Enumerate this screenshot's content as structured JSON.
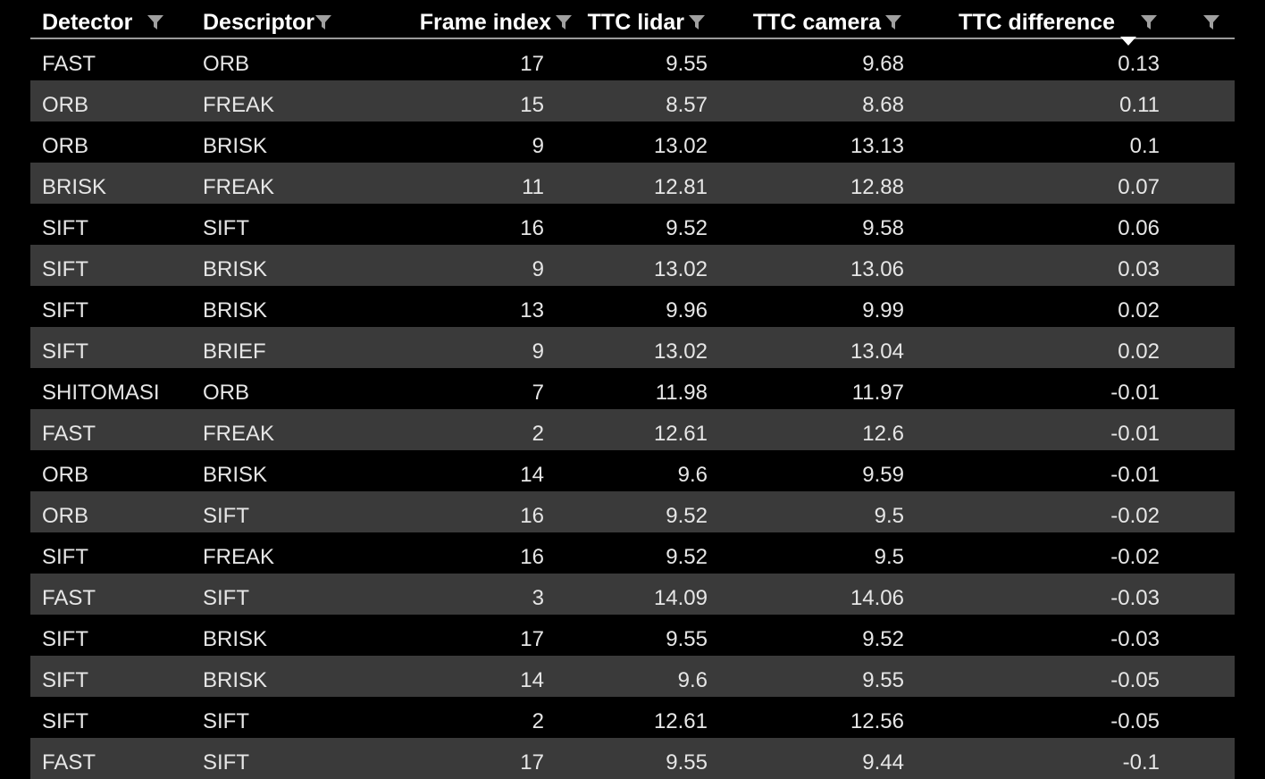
{
  "columns": {
    "detector": "Detector",
    "descriptor": "Descriptor",
    "frame_index": "Frame index",
    "ttc_lidar": "TTC lidar",
    "ttc_camera": "TTC camera",
    "ttc_difference": "TTC difference"
  },
  "sort": {
    "column": "ttc_difference",
    "direction": "descending"
  },
  "colors": {
    "background": "#000000",
    "alt_row": "#3a3a3a",
    "text": "#e6e6e6",
    "header_divider": "#9a9a9a",
    "filter_icon": "#a0a0a0"
  },
  "rows": [
    {
      "detector": "FAST",
      "descriptor": "ORB",
      "frame_index": "17",
      "ttc_lidar": "9.55",
      "ttc_camera": "9.68",
      "ttc_difference": "0.13"
    },
    {
      "detector": "ORB",
      "descriptor": "FREAK",
      "frame_index": "15",
      "ttc_lidar": "8.57",
      "ttc_camera": "8.68",
      "ttc_difference": "0.11"
    },
    {
      "detector": "ORB",
      "descriptor": "BRISK",
      "frame_index": "9",
      "ttc_lidar": "13.02",
      "ttc_camera": "13.13",
      "ttc_difference": "0.1"
    },
    {
      "detector": "BRISK",
      "descriptor": "FREAK",
      "frame_index": "11",
      "ttc_lidar": "12.81",
      "ttc_camera": "12.88",
      "ttc_difference": "0.07"
    },
    {
      "detector": "SIFT",
      "descriptor": "SIFT",
      "frame_index": "16",
      "ttc_lidar": "9.52",
      "ttc_camera": "9.58",
      "ttc_difference": "0.06"
    },
    {
      "detector": "SIFT",
      "descriptor": "BRISK",
      "frame_index": "9",
      "ttc_lidar": "13.02",
      "ttc_camera": "13.06",
      "ttc_difference": "0.03"
    },
    {
      "detector": "SIFT",
      "descriptor": "BRISK",
      "frame_index": "13",
      "ttc_lidar": "9.96",
      "ttc_camera": "9.99",
      "ttc_difference": "0.02"
    },
    {
      "detector": "SIFT",
      "descriptor": "BRIEF",
      "frame_index": "9",
      "ttc_lidar": "13.02",
      "ttc_camera": "13.04",
      "ttc_difference": "0.02"
    },
    {
      "detector": "SHITOMASI",
      "descriptor": "ORB",
      "frame_index": "7",
      "ttc_lidar": "11.98",
      "ttc_camera": "11.97",
      "ttc_difference": "-0.01"
    },
    {
      "detector": "FAST",
      "descriptor": "FREAK",
      "frame_index": "2",
      "ttc_lidar": "12.61",
      "ttc_camera": "12.6",
      "ttc_difference": "-0.01"
    },
    {
      "detector": "ORB",
      "descriptor": "BRISK",
      "frame_index": "14",
      "ttc_lidar": "9.6",
      "ttc_camera": "9.59",
      "ttc_difference": "-0.01"
    },
    {
      "detector": "ORB",
      "descriptor": "SIFT",
      "frame_index": "16",
      "ttc_lidar": "9.52",
      "ttc_camera": "9.5",
      "ttc_difference": "-0.02"
    },
    {
      "detector": "SIFT",
      "descriptor": "FREAK",
      "frame_index": "16",
      "ttc_lidar": "9.52",
      "ttc_camera": "9.5",
      "ttc_difference": "-0.02"
    },
    {
      "detector": "FAST",
      "descriptor": "SIFT",
      "frame_index": "3",
      "ttc_lidar": "14.09",
      "ttc_camera": "14.06",
      "ttc_difference": "-0.03"
    },
    {
      "detector": "SIFT",
      "descriptor": "BRISK",
      "frame_index": "17",
      "ttc_lidar": "9.55",
      "ttc_camera": "9.52",
      "ttc_difference": "-0.03"
    },
    {
      "detector": "SIFT",
      "descriptor": "BRISK",
      "frame_index": "14",
      "ttc_lidar": "9.6",
      "ttc_camera": "9.55",
      "ttc_difference": "-0.05"
    },
    {
      "detector": "SIFT",
      "descriptor": "SIFT",
      "frame_index": "2",
      "ttc_lidar": "12.61",
      "ttc_camera": "12.56",
      "ttc_difference": "-0.05"
    },
    {
      "detector": "FAST",
      "descriptor": "SIFT",
      "frame_index": "17",
      "ttc_lidar": "9.55",
      "ttc_camera": "9.44",
      "ttc_difference": "-0.1"
    }
  ]
}
